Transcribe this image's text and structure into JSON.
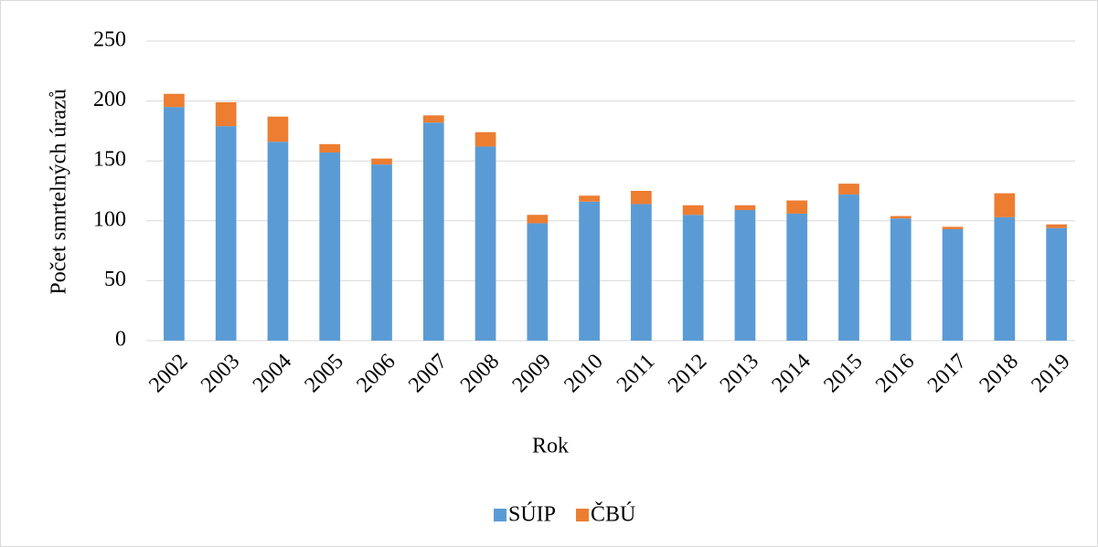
{
  "chart_data": {
    "type": "stacked-bar",
    "categories": [
      "2002",
      "2003",
      "2004",
      "2005",
      "2006",
      "2007",
      "2008",
      "2009",
      "2010",
      "2011",
      "2012",
      "2013",
      "2014",
      "2015",
      "2016",
      "2017",
      "2018",
      "2019"
    ],
    "series": [
      {
        "name": "SÚIP",
        "color": "#5b9bd5",
        "values": [
          195,
          179,
          166,
          157,
          147,
          182,
          162,
          98,
          116,
          114,
          105,
          109,
          106,
          122,
          102,
          93,
          103,
          94
        ]
      },
      {
        "name": "ČBÚ",
        "color": "#ed7d31",
        "values": [
          11,
          20,
          21,
          7,
          5,
          6,
          12,
          7,
          5,
          11,
          8,
          4,
          11,
          9,
          2,
          2,
          20,
          3
        ]
      }
    ],
    "ylim": [
      0,
      250
    ],
    "yticks": [
      0,
      50,
      100,
      150,
      200,
      250
    ],
    "grid": true,
    "y_label": "Počet smrtelných úrazů",
    "x_label": "Rok",
    "legend": "bottom"
  }
}
